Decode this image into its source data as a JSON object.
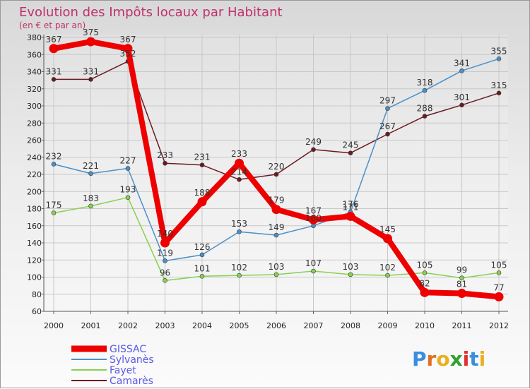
{
  "chart_data": {
    "type": "line",
    "title": "Evolution des Impôts locaux par Habitant",
    "subtitle": "(en € et par an)",
    "xlabel": "",
    "ylabel": "",
    "ylim": [
      60,
      380
    ],
    "ytick_step": 20,
    "grid": true,
    "x": [
      "2000",
      "2001",
      "2002",
      "2003",
      "2004",
      "2005",
      "2006",
      "2007",
      "2008",
      "2009",
      "2010",
      "2011",
      "2012"
    ],
    "series": [
      {
        "name": "GISSAC",
        "color": "#ee0000",
        "values": [
          367,
          375,
          367,
          140,
          188,
          233,
          179,
          167,
          171,
          145,
          82,
          81,
          77
        ]
      },
      {
        "name": "Sylvanès",
        "color": "#4a90c8",
        "values": [
          232,
          221,
          227,
          119,
          126,
          153,
          149,
          160,
          176,
          297,
          318,
          341,
          355
        ]
      },
      {
        "name": "Fayet",
        "color": "#88d050",
        "values": [
          175,
          183,
          193,
          96,
          101,
          102,
          103,
          107,
          103,
          102,
          105,
          99,
          105
        ]
      },
      {
        "name": "Camarès",
        "color": "#6b1a22",
        "values": [
          331,
          331,
          352,
          233,
          231,
          214,
          220,
          249,
          245,
          267,
          288,
          301,
          315
        ]
      }
    ],
    "legend_position": "bottom-left"
  },
  "logo": {
    "letters": [
      "P",
      "r",
      "o",
      "x",
      "i",
      "t",
      "i"
    ],
    "colors": [
      "#3a8ee0",
      "#e07020",
      "#e8b020",
      "#30a030",
      "#e03030",
      "#3a8ee0",
      "#e8b020"
    ]
  }
}
